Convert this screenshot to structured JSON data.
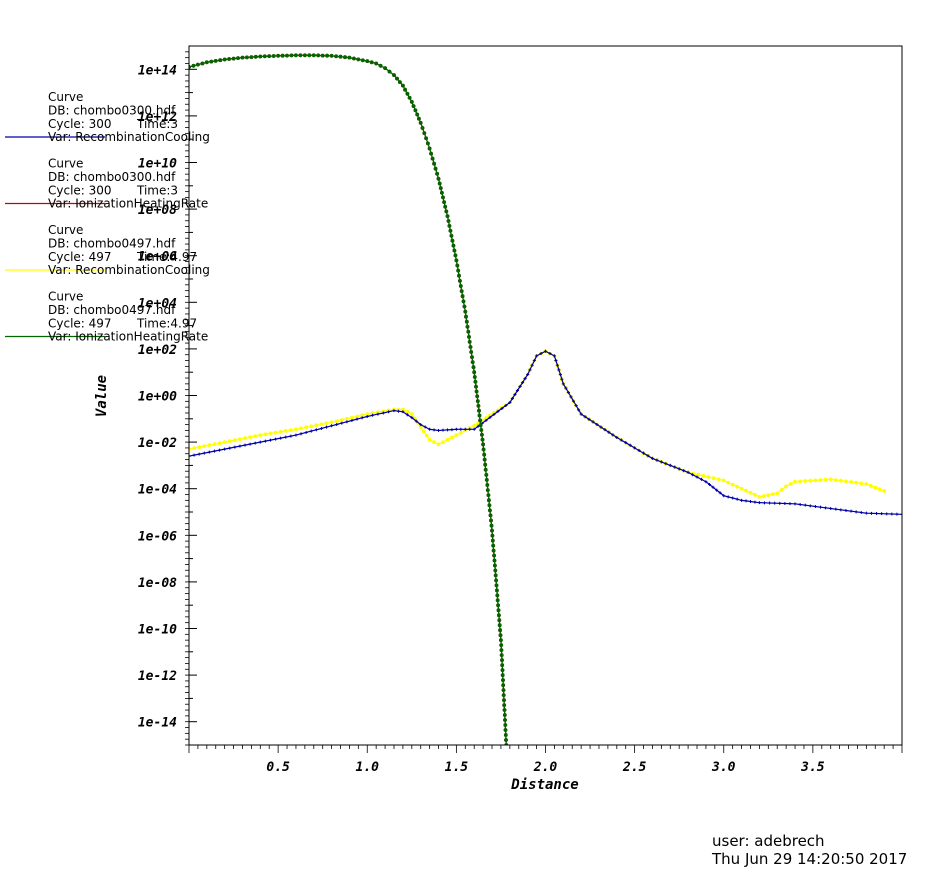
{
  "chart_data": {
    "type": "line",
    "xlabel": "Distance",
    "ylabel": "Value",
    "xlim": [
      0,
      4.0
    ],
    "ylim_log10": [
      -15.0,
      15.0
    ],
    "yscale": "log",
    "grid": false,
    "legend_placement": "left",
    "x_ticks": [
      0.5,
      1.0,
      1.5,
      2.0,
      2.5,
      3.0,
      3.5
    ],
    "x_tick_labels": [
      "0.5",
      "1.0",
      "1.5",
      "2.0",
      "2.5",
      "3.0",
      "3.5"
    ],
    "y_ticks_log10": [
      14,
      12,
      10,
      8,
      6,
      4,
      2,
      0,
      -2,
      -4,
      -6,
      -8,
      -10,
      -12,
      -14
    ],
    "y_tick_labels": [
      "1e+14",
      "1e+12",
      "1e+10",
      "1e+08",
      "1e+06",
      "1e+04",
      "1e+02",
      "1e+00",
      "1e-02",
      "1e-04",
      "1e-06",
      "1e-08",
      "1e-10",
      "1e-12",
      "1e-14"
    ],
    "series": [
      {
        "color": "#0000aa",
        "marker": "plus",
        "x": [
          0.0,
          0.2,
          0.4,
          0.6,
          0.8,
          1.0,
          1.15,
          1.2,
          1.25,
          1.3,
          1.35,
          1.4,
          1.5,
          1.6,
          1.8,
          1.9,
          1.95,
          2.0,
          2.05,
          2.1,
          2.2,
          2.4,
          2.6,
          2.8,
          2.9,
          3.0,
          3.1,
          3.2,
          3.4,
          3.6,
          3.8,
          4.0
        ],
        "log10_y": [
          -2.6,
          -2.3,
          -2.0,
          -1.7,
          -1.3,
          -0.9,
          -0.65,
          -0.7,
          -0.95,
          -1.25,
          -1.45,
          -1.5,
          -1.45,
          -1.45,
          -0.3,
          0.9,
          1.7,
          1.9,
          1.7,
          0.5,
          -0.8,
          -1.8,
          -2.7,
          -3.3,
          -3.7,
          -4.3,
          -4.5,
          -4.6,
          -4.65,
          -4.85,
          -5.05,
          -5.1
        ]
      },
      {
        "color": "#cc0000",
        "marker": "dot",
        "x": [
          0.0,
          0.1,
          0.2,
          0.3,
          0.4,
          0.5,
          0.6,
          0.7,
          0.8,
          0.9,
          1.0,
          1.05,
          1.1,
          1.15,
          1.2,
          1.25,
          1.3,
          1.35,
          1.4,
          1.45,
          1.5,
          1.55,
          1.6,
          1.65,
          1.7,
          1.75,
          1.78
        ],
        "log10_y": [
          14.1,
          14.3,
          14.42,
          14.5,
          14.55,
          14.58,
          14.6,
          14.6,
          14.58,
          14.5,
          14.35,
          14.25,
          14.05,
          13.75,
          13.3,
          12.6,
          11.7,
          10.6,
          9.3,
          7.7,
          5.8,
          3.6,
          1.0,
          -2.1,
          -5.8,
          -10.5,
          -15.0
        ]
      },
      {
        "color": "#ffff00",
        "marker": "diamond",
        "x": [
          0.0,
          0.2,
          0.4,
          0.6,
          0.8,
          1.0,
          1.15,
          1.2,
          1.25,
          1.3,
          1.35,
          1.4,
          1.45,
          1.5,
          1.6,
          1.8,
          1.9,
          1.95,
          2.0,
          2.05,
          2.1,
          2.2,
          2.4,
          2.6,
          2.8,
          3.0,
          3.1,
          3.2,
          3.3,
          3.35,
          3.4,
          3.6,
          3.8,
          3.9
        ],
        "log10_y": [
          -2.3,
          -2.0,
          -1.7,
          -1.45,
          -1.15,
          -0.8,
          -0.6,
          -0.6,
          -0.8,
          -1.35,
          -1.9,
          -2.1,
          -1.9,
          -1.7,
          -1.3,
          -0.3,
          0.9,
          1.7,
          1.9,
          1.7,
          0.5,
          -0.8,
          -1.8,
          -2.7,
          -3.3,
          -3.65,
          -4.0,
          -4.35,
          -4.2,
          -3.9,
          -3.7,
          -3.6,
          -3.8,
          -4.1
        ]
      },
      {
        "color": "#006600",
        "marker": "diamond",
        "x": [
          0.0,
          0.1,
          0.2,
          0.3,
          0.4,
          0.5,
          0.6,
          0.7,
          0.8,
          0.9,
          1.0,
          1.05,
          1.1,
          1.15,
          1.2,
          1.25,
          1.3,
          1.35,
          1.4,
          1.45,
          1.5,
          1.55,
          1.6,
          1.65,
          1.7,
          1.75,
          1.78
        ],
        "log10_y": [
          14.1,
          14.3,
          14.42,
          14.5,
          14.55,
          14.58,
          14.6,
          14.6,
          14.58,
          14.5,
          14.35,
          14.25,
          14.05,
          13.75,
          13.3,
          12.6,
          11.7,
          10.6,
          9.3,
          7.7,
          5.8,
          3.6,
          1.0,
          -2.1,
          -5.8,
          -10.5,
          -15.0
        ]
      }
    ],
    "legend": [
      {
        "title": "Curve",
        "db": "DB: chombo0300.hdf",
        "cycle": "Cycle: 300",
        "time": "Time:3",
        "var": "Var: RecombinationCooling",
        "color": "#0000aa"
      },
      {
        "title": "Curve",
        "db": "DB: chombo0300.hdf",
        "cycle": "Cycle: 300",
        "time": "Time:3",
        "var": "Var: IonizationHeatingRate",
        "color": "#cc0000"
      },
      {
        "title": "Curve",
        "db": "DB: chombo0497.hdf",
        "cycle": "Cycle: 497",
        "time": "Time:4.97",
        "var": "Var: RecombinationCooling",
        "color": "#ffff00"
      },
      {
        "title": "Curve",
        "db": "DB: chombo0497.hdf",
        "cycle": "Cycle: 497",
        "time": "Time:4.97",
        "var": "Var: IonizationHeatingRate",
        "color": "#006600"
      }
    ]
  },
  "footer": {
    "user": "user: adebrech",
    "timestamp": "Thu Jun 29 14:20:50 2017"
  }
}
